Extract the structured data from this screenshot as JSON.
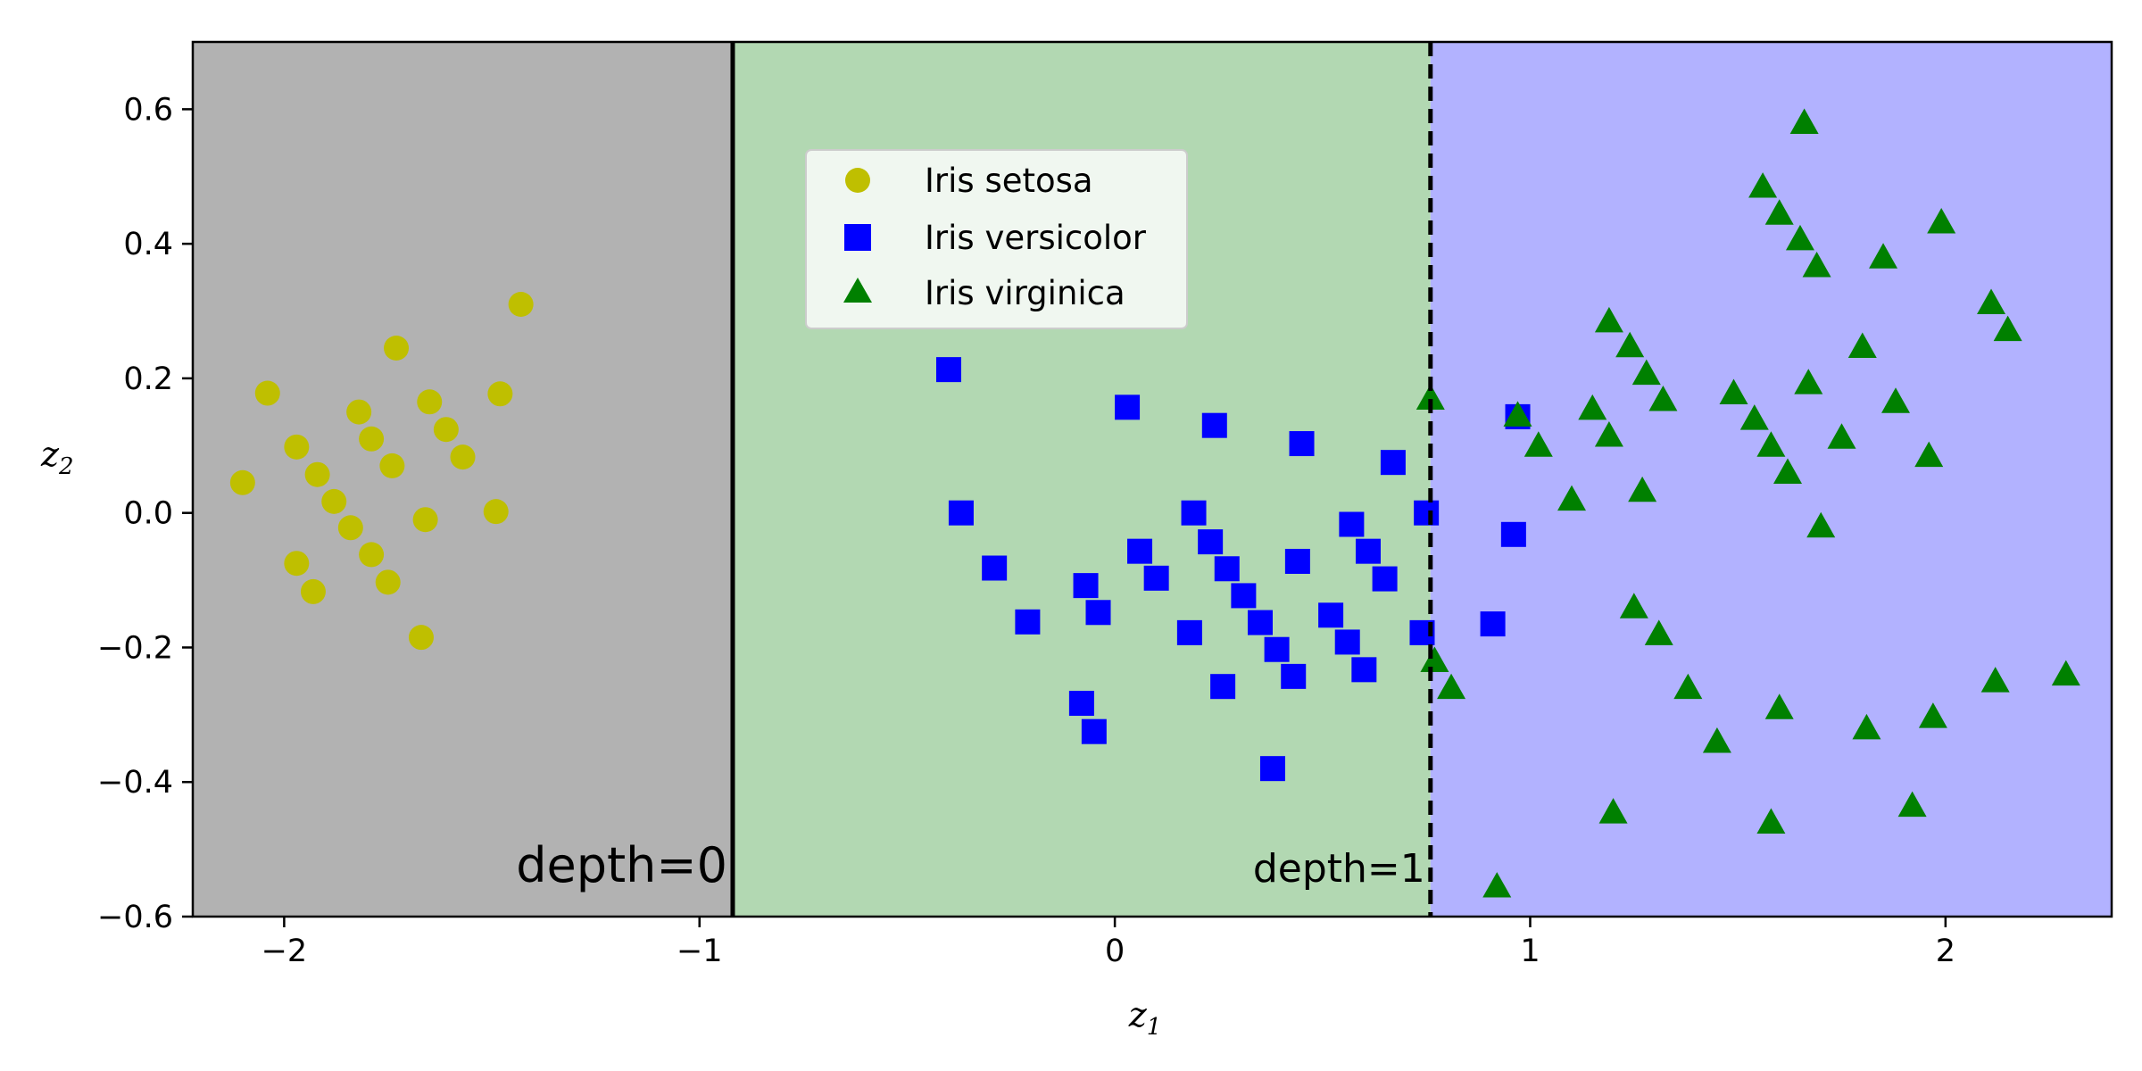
{
  "chart_data": {
    "type": "scatter",
    "xlabel": "z",
    "xlabel_sub": "1",
    "ylabel": "z",
    "ylabel_sub": "2",
    "xlim": [
      -2.22,
      2.4
    ],
    "ylim": [
      -0.6,
      0.7
    ],
    "xticks": [
      -2,
      -1,
      0,
      1,
      2
    ],
    "xtick_labels": [
      "−2",
      "−1",
      "0",
      "1",
      "2"
    ],
    "yticks": [
      -0.6,
      -0.4,
      -0.2,
      0.0,
      0.2,
      0.4,
      0.6
    ],
    "ytick_labels": [
      "−0.6",
      "−0.4",
      "−0.2",
      "0.0",
      "0.2",
      "0.4",
      "0.6"
    ],
    "grid": false,
    "legend_position": "upper-center",
    "regions": [
      {
        "x0": -2.22,
        "x1": -0.92,
        "color": "#b2b2b2"
      },
      {
        "x0": -0.92,
        "x1": 0.76,
        "color": "#b2d8b2"
      },
      {
        "x0": 0.76,
        "x1": 2.4,
        "color": "#b2b2ff"
      }
    ],
    "boundaries": [
      {
        "x": -0.92,
        "style": "solid",
        "label": "depth=0",
        "label_size": "large"
      },
      {
        "x": 0.76,
        "style": "dashed",
        "label": "depth=1",
        "label_size": "medium"
      }
    ],
    "series": [
      {
        "name": "Iris setosa",
        "marker": "circle",
        "color": "#bfbf00",
        "points": [
          [
            -2.1,
            0.045
          ],
          [
            -2.04,
            0.178
          ],
          [
            -1.97,
            0.098
          ],
          [
            -1.97,
            -0.075
          ],
          [
            -1.93,
            -0.117
          ],
          [
            -1.92,
            0.057
          ],
          [
            -1.88,
            0.017
          ],
          [
            -1.84,
            -0.022
          ],
          [
            -1.82,
            0.15
          ],
          [
            -1.79,
            0.11
          ],
          [
            -1.79,
            -0.062
          ],
          [
            -1.75,
            -0.103
          ],
          [
            -1.74,
            0.07
          ],
          [
            -1.73,
            0.245
          ],
          [
            -1.67,
            -0.185
          ],
          [
            -1.66,
            -0.01
          ],
          [
            -1.65,
            0.165
          ],
          [
            -1.61,
            0.124
          ],
          [
            -1.57,
            0.083
          ],
          [
            -1.49,
            0.002
          ],
          [
            -1.48,
            0.177
          ],
          [
            -1.43,
            0.31
          ]
        ]
      },
      {
        "name": "Iris versicolor",
        "marker": "square",
        "color": "#0000ff",
        "points": [
          [
            -0.4,
            0.213
          ],
          [
            -0.37,
            0.0
          ],
          [
            -0.29,
            -0.082
          ],
          [
            -0.21,
            -0.162
          ],
          [
            -0.08,
            -0.283
          ],
          [
            -0.07,
            -0.108
          ],
          [
            -0.04,
            -0.148
          ],
          [
            -0.05,
            -0.325
          ],
          [
            0.03,
            0.157
          ],
          [
            0.06,
            -0.057
          ],
          [
            0.1,
            -0.097
          ],
          [
            0.18,
            -0.178
          ],
          [
            0.19,
            0.0
          ],
          [
            0.23,
            -0.043
          ],
          [
            0.24,
            0.13
          ],
          [
            0.26,
            -0.258
          ],
          [
            0.27,
            -0.083
          ],
          [
            0.31,
            -0.123
          ],
          [
            0.35,
            -0.163
          ],
          [
            0.38,
            -0.38
          ],
          [
            0.39,
            -0.203
          ],
          [
            0.43,
            -0.243
          ],
          [
            0.44,
            -0.072
          ],
          [
            0.45,
            0.103
          ],
          [
            0.52,
            -0.152
          ],
          [
            0.56,
            -0.192
          ],
          [
            0.57,
            -0.017
          ],
          [
            0.6,
            -0.233
          ],
          [
            0.61,
            -0.057
          ],
          [
            0.65,
            -0.098
          ],
          [
            0.67,
            0.075
          ],
          [
            0.74,
            -0.178
          ],
          [
            0.75,
            0.0
          ],
          [
            0.91,
            -0.165
          ],
          [
            0.96,
            -0.032
          ],
          [
            0.97,
            0.143
          ]
        ]
      },
      {
        "name": "Iris virginica",
        "marker": "triangle",
        "color": "#008000",
        "points": [
          [
            0.76,
            0.17
          ],
          [
            0.77,
            -0.22
          ],
          [
            0.81,
            -0.26
          ],
          [
            0.92,
            -0.555
          ],
          [
            0.97,
            0.145
          ],
          [
            1.02,
            0.1
          ],
          [
            1.1,
            0.02
          ],
          [
            1.15,
            0.155
          ],
          [
            1.19,
            0.285
          ],
          [
            1.19,
            0.115
          ],
          [
            1.2,
            -0.445
          ],
          [
            1.24,
            0.248
          ],
          [
            1.25,
            -0.14
          ],
          [
            1.27,
            0.033
          ],
          [
            1.28,
            0.207
          ],
          [
            1.31,
            -0.18
          ],
          [
            1.32,
            0.168
          ],
          [
            1.38,
            -0.26
          ],
          [
            1.45,
            -0.34
          ],
          [
            1.49,
            0.178
          ],
          [
            1.54,
            0.14
          ],
          [
            1.56,
            0.485
          ],
          [
            1.58,
            0.1
          ],
          [
            1.58,
            -0.46
          ],
          [
            1.6,
            0.445
          ],
          [
            1.6,
            -0.29
          ],
          [
            1.62,
            0.06
          ],
          [
            1.65,
            0.407
          ],
          [
            1.66,
            0.58
          ],
          [
            1.67,
            0.193
          ],
          [
            1.69,
            0.367
          ],
          [
            1.7,
            -0.02
          ],
          [
            1.75,
            0.112
          ],
          [
            1.8,
            0.247
          ],
          [
            1.81,
            -0.32
          ],
          [
            1.85,
            0.38
          ],
          [
            1.88,
            0.165
          ],
          [
            1.92,
            -0.435
          ],
          [
            1.96,
            0.085
          ],
          [
            1.97,
            -0.303
          ],
          [
            1.99,
            0.432
          ],
          [
            2.11,
            0.312
          ],
          [
            2.12,
            -0.25
          ],
          [
            2.15,
            0.272
          ],
          [
            2.29,
            -0.24
          ]
        ]
      }
    ]
  }
}
